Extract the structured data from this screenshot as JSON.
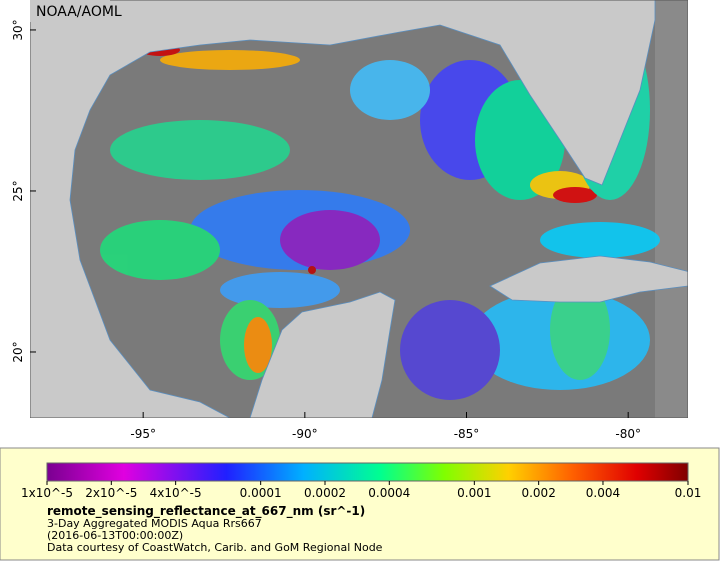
{
  "credit": "NOAA/AOML",
  "map": {
    "xlim": [
      -98.5,
      -78.15
    ],
    "ylim": [
      17.95,
      30.93
    ],
    "xticks": [
      {
        "value": -95,
        "label": "-95°"
      },
      {
        "value": -90,
        "label": "-90°"
      },
      {
        "value": -85,
        "label": "-85°"
      },
      {
        "value": -80,
        "label": "-80°"
      }
    ],
    "yticks": [
      {
        "value": 20,
        "label": "20°"
      },
      {
        "value": 25,
        "label": "25°"
      },
      {
        "value": 30,
        "label": "30°"
      }
    ]
  },
  "colorbar": {
    "log_scale": true,
    "lim": [
      1e-05,
      0.01
    ],
    "ticks": [
      {
        "value": 1e-05,
        "label": "1x10^-5"
      },
      {
        "value": 2e-05,
        "label": "2x10^-5"
      },
      {
        "value": 4e-05,
        "label": "4x10^-5"
      },
      0.0001,
      0.0002,
      0.0004,
      0.001,
      0.002,
      0.004,
      0.01
    ]
  },
  "legend": {
    "variable": "remote_sensing_reflectance_at_667_nm (sr^-1)",
    "product": "3-Day Aggregated MODIS Aqua Rrs667",
    "time": "(2016-06-13T00:00:00Z)",
    "courtesy": "Data courtesy of CoastWatch, Carib. and GoM Regional Node"
  }
}
